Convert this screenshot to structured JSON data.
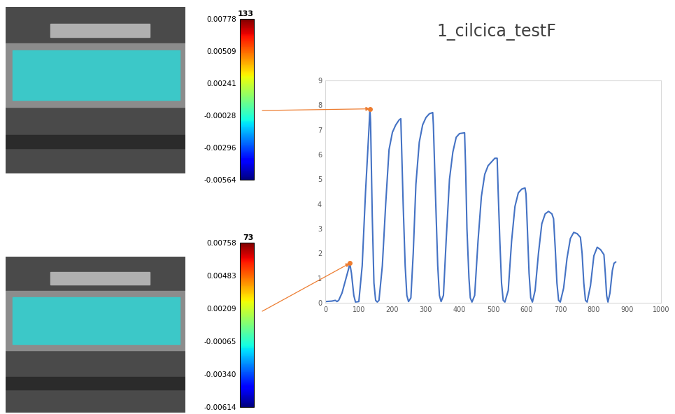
{
  "chart_data": {
    "type": "line",
    "title": "1_cilcica_testF",
    "color": "#4472c4",
    "grid": false,
    "x": [
      0,
      20,
      30,
      35,
      40,
      50,
      60,
      70,
      73,
      78,
      85,
      90,
      100,
      110,
      120,
      130,
      133,
      135,
      140,
      145,
      150,
      155,
      160,
      170,
      180,
      190,
      200,
      210,
      220,
      225,
      227,
      232,
      238,
      243,
      248,
      255,
      262,
      270,
      280,
      290,
      300,
      310,
      320,
      322,
      328,
      335,
      340,
      345,
      352,
      360,
      370,
      380,
      390,
      400,
      415,
      418,
      422,
      428,
      432,
      437,
      445,
      455,
      465,
      475,
      485,
      495,
      505,
      512,
      515,
      520,
      525,
      530,
      535,
      545,
      555,
      565,
      575,
      585,
      595,
      598,
      602,
      607,
      612,
      617,
      625,
      635,
      645,
      655,
      665,
      675,
      680,
      685,
      690,
      695,
      700,
      710,
      720,
      730,
      740,
      750,
      760,
      765,
      770,
      775,
      780,
      790,
      800,
      810,
      820,
      830,
      834,
      838,
      842,
      848,
      855,
      860,
      865
    ],
    "values": [
      0.05,
      0.07,
      0.1,
      0.05,
      0.1,
      0.4,
      0.9,
      1.4,
      1.6,
      1.2,
      0.3,
      0.03,
      0.05,
      1.5,
      4.5,
      7.0,
      7.85,
      7.3,
      3.5,
      0.8,
      0.1,
      0.03,
      0.1,
      1.5,
      4.0,
      6.2,
      6.9,
      7.2,
      7.4,
      7.45,
      6.5,
      4.0,
      1.5,
      0.3,
      0.05,
      0.2,
      2.0,
      4.8,
      6.5,
      7.2,
      7.5,
      7.65,
      7.7,
      7.2,
      4.5,
      1.5,
      0.3,
      0.05,
      0.3,
      2.5,
      5.0,
      6.1,
      6.7,
      6.85,
      6.88,
      5.5,
      3.0,
      1.0,
      0.2,
      0.03,
      0.3,
      2.5,
      4.3,
      5.2,
      5.55,
      5.7,
      5.85,
      5.85,
      4.5,
      2.5,
      0.8,
      0.1,
      0.03,
      0.5,
      2.5,
      3.9,
      4.45,
      4.6,
      4.65,
      4.4,
      3.0,
      1.2,
      0.2,
      0.03,
      0.5,
      2.0,
      3.2,
      3.6,
      3.7,
      3.6,
      3.4,
      2.2,
      0.8,
      0.1,
      0.03,
      0.6,
      1.8,
      2.6,
      2.85,
      2.8,
      2.65,
      2.0,
      0.8,
      0.1,
      0.03,
      0.7,
      1.9,
      2.25,
      2.15,
      1.95,
      1.2,
      0.3,
      0.03,
      0.4,
      1.3,
      1.6,
      1.65
    ],
    "xlim": [
      0,
      1000
    ],
    "xticks": [
      0,
      100,
      200,
      300,
      400,
      500,
      600,
      700,
      800,
      900,
      1000
    ],
    "ylim": [
      0,
      9
    ],
    "yticks": [
      0,
      1,
      2,
      3,
      4,
      5,
      6,
      7,
      8,
      9
    ],
    "highlights": [
      {
        "x": 133,
        "y": 7.85,
        "color": "#ed7d31"
      },
      {
        "x": 73,
        "y": 1.6,
        "color": "#ed7d31"
      }
    ]
  },
  "images": [
    {
      "frame": 133,
      "colorbar": {
        "range": [
          -0.00564,
          0.00778
        ],
        "ticks": [
          0.00778,
          0.00509,
          0.00241,
          -0.00028,
          -0.00296,
          -0.00564
        ]
      }
    },
    {
      "frame": 73,
      "colorbar": {
        "range": [
          -0.00614,
          0.00758
        ],
        "ticks": [
          0.00758,
          0.00483,
          0.00209,
          -0.00065,
          {
            "value": -0.0034,
            "label": "-0.00340"
          },
          -0.00614
        ]
      }
    }
  ]
}
